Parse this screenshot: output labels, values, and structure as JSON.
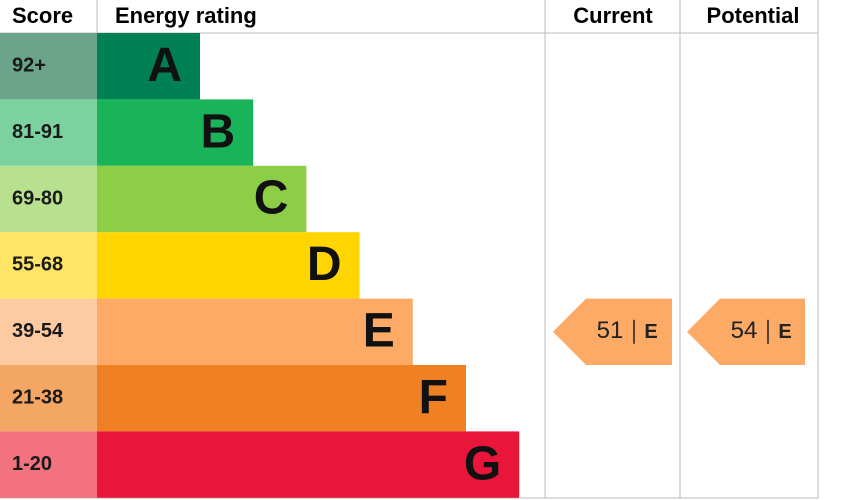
{
  "header": {
    "score": "Score",
    "energy_rating": "Energy rating",
    "current": "Current",
    "potential": "Potential"
  },
  "bands": [
    {
      "score": "92+",
      "rating": "A",
      "color": "#008054",
      "score_color": "#6ba48a"
    },
    {
      "score": "81-91",
      "rating": "B",
      "color": "#19b459",
      "score_color": "#7cd29f"
    },
    {
      "score": "69-80",
      "rating": "C",
      "color": "#8dce46",
      "score_color": "#b8e18f"
    },
    {
      "score": "55-68",
      "rating": "D",
      "color": "#ffd500",
      "score_color": "#ffe566"
    },
    {
      "score": "39-54",
      "rating": "E",
      "color": "#fcaa65",
      "score_color": "#fdcaa2"
    },
    {
      "score": "21-38",
      "rating": "F",
      "color": "#ef8023",
      "score_color": "#f4a665"
    },
    {
      "score": "1-20",
      "rating": "G",
      "color": "#e9153b",
      "score_color": "#f2737f"
    }
  ],
  "current": {
    "score": 51,
    "rating": "E"
  },
  "potential": {
    "score": 54,
    "rating": "E"
  }
}
